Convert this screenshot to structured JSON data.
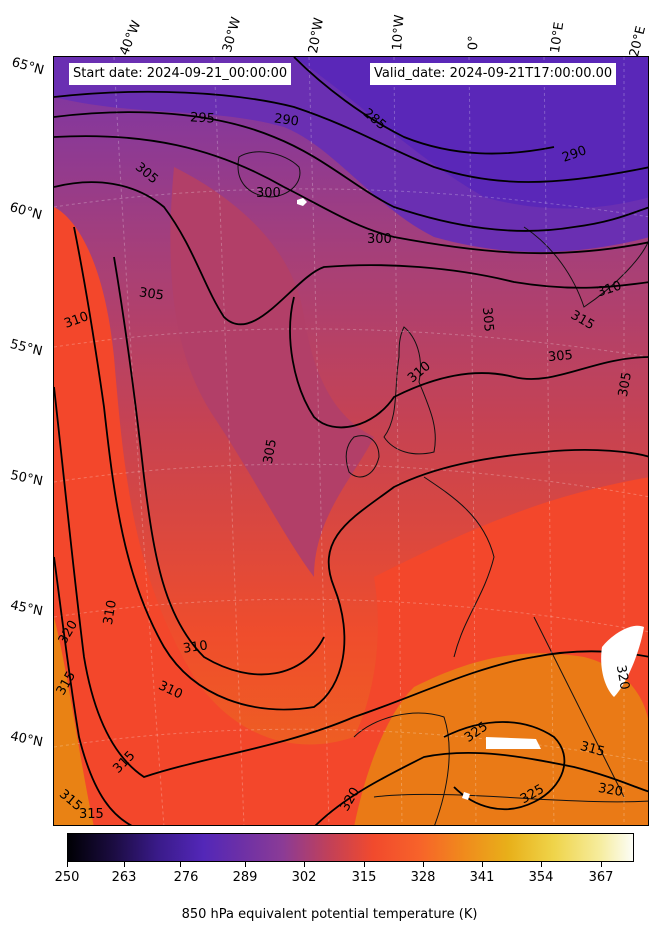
{
  "header": {
    "start_date": "Start date: 2024-09-21_00:00:00",
    "valid_date": "Valid_date: 2024-09-21T17:00:00.00"
  },
  "longitude_labels": [
    "40°W",
    "30°W",
    "20°W",
    "10°W",
    "0°",
    "10°E",
    "20°E"
  ],
  "latitude_labels": [
    "65°N",
    "60°N",
    "55°N",
    "50°N",
    "45°N",
    "40°N"
  ],
  "contour_labels": [
    "295",
    "290",
    "285",
    "290",
    "305",
    "300",
    "300",
    "305",
    "310",
    "310",
    "305",
    "315",
    "305",
    "305",
    "310",
    "305",
    "310",
    "310",
    "320",
    "315",
    "310",
    "315",
    "325",
    "320",
    "315",
    "320",
    "325",
    "320",
    "315",
    "315"
  ],
  "colorbar": {
    "ticks": [
      "250",
      "263",
      "276",
      "289",
      "302",
      "315",
      "328",
      "341",
      "354",
      "367"
    ],
    "label": "850 hPa equivalent potential temperature (K)",
    "colormap": "CMRmap-like: black–indigo–purple–red–orange–yellow–white"
  },
  "colors": {
    "cold": "#5a2ab0",
    "mid": "#c1405c",
    "warm": "#f4462a",
    "hot": "#e8920e"
  }
}
